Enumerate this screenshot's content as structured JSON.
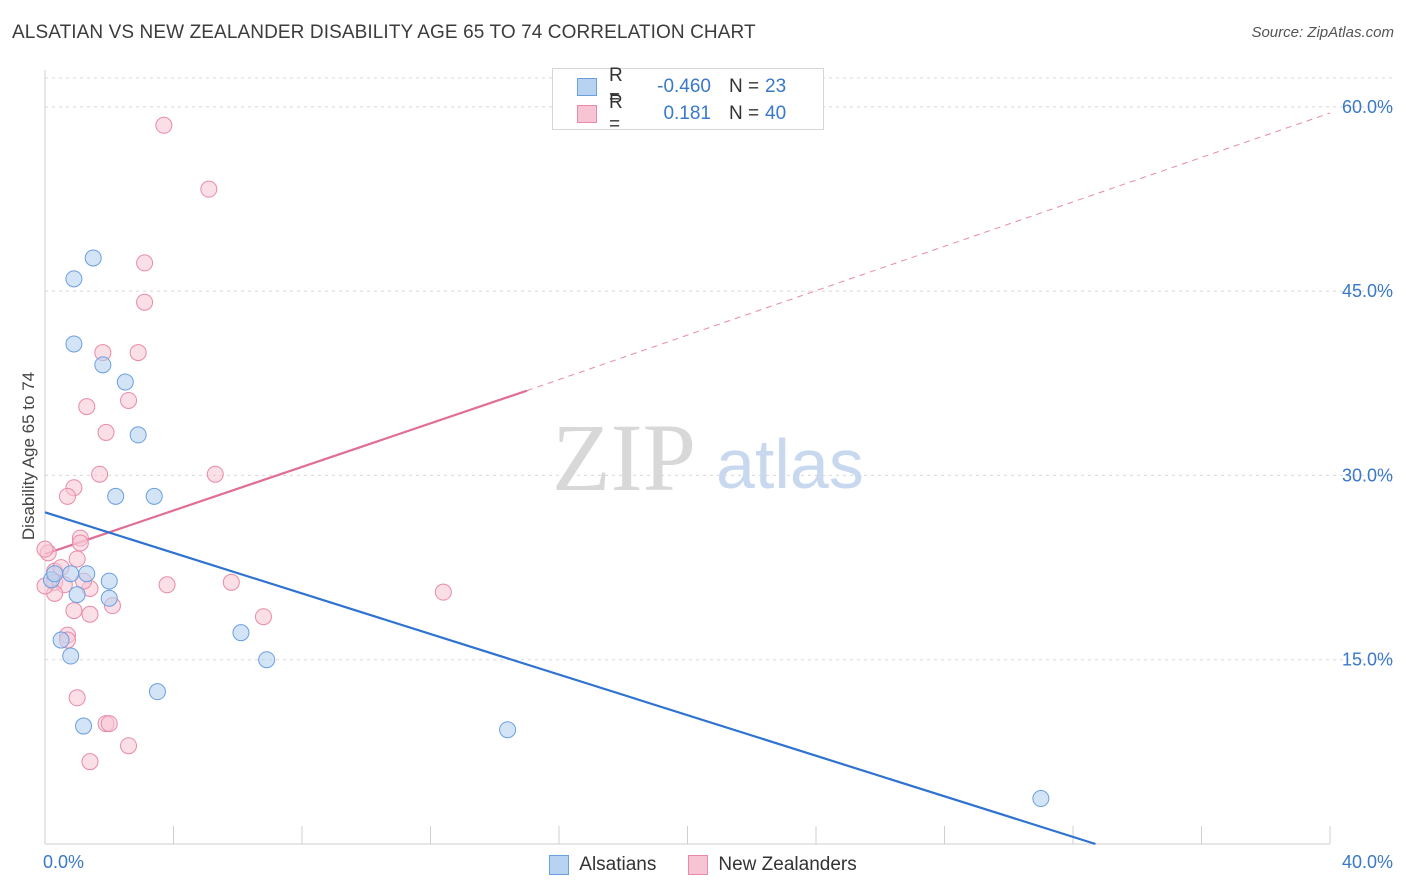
{
  "title": "ALSATIAN VS NEW ZEALANDER DISABILITY AGE 65 TO 74 CORRELATION CHART",
  "source": "Source: ZipAtlas.com",
  "watermark": {
    "zip": "ZIP",
    "atlas": "atlas"
  },
  "colors": {
    "blue_fill": "#b8d2f2",
    "blue_stroke": "#6a9fe0",
    "blue_line": "#2f73d0",
    "pink_fill": "#f7c4d3",
    "pink_stroke": "#e98aa8",
    "pink_line": "#e06e96",
    "grid": "#d8d8d8",
    "axis_label": "#3a78c9"
  },
  "legend": {
    "rows": [
      {
        "r_label": "R =",
        "r_value": "-0.460",
        "n_label": "N =",
        "n_value": "23"
      },
      {
        "r_label": "R =",
        "r_value": "0.181",
        "n_label": "N =",
        "n_value": "40"
      }
    ]
  },
  "bottom_legend": {
    "alsatians": "Alsatians",
    "new_zealanders": "New Zealanders"
  },
  "chart_data": {
    "type": "scatter",
    "title": "ALSATIAN VS NEW ZEALANDER DISABILITY AGE 65 TO 74 CORRELATION CHART",
    "xlabel": "",
    "ylabel": "Disability Age 65 to 74",
    "xlim": [
      0,
      40
    ],
    "ylim": [
      0,
      63
    ],
    "x_tick_labels": [
      "0.0%",
      "40.0%"
    ],
    "y_ticks": [
      15,
      30,
      45,
      60
    ],
    "y_tick_labels": [
      "15.0%",
      "30.0%",
      "45.0%",
      "60.0%"
    ],
    "legend_position": "top-center",
    "series": [
      {
        "name": "Alsatians",
        "color": "blue",
        "points": [
          [
            1.5,
            47.7
          ],
          [
            0.9,
            46.0
          ],
          [
            0.9,
            40.7
          ],
          [
            1.8,
            39.0
          ],
          [
            2.5,
            37.6
          ],
          [
            2.9,
            33.3
          ],
          [
            2.2,
            28.3
          ],
          [
            3.4,
            28.3
          ],
          [
            0.8,
            22.0
          ],
          [
            1.3,
            22.0
          ],
          [
            1.0,
            20.3
          ],
          [
            2.0,
            21.4
          ],
          [
            2.0,
            20.0
          ],
          [
            0.5,
            16.6
          ],
          [
            0.8,
            15.3
          ],
          [
            6.1,
            17.2
          ],
          [
            6.9,
            15.0
          ],
          [
            3.5,
            12.4
          ],
          [
            1.2,
            9.6
          ],
          [
            14.4,
            9.3
          ],
          [
            31.0,
            3.7
          ],
          [
            0.2,
            21.5
          ],
          [
            0.3,
            22.0
          ]
        ],
        "trend": {
          "x": [
            0,
            32.7
          ],
          "y": [
            27.0,
            0.0
          ]
        }
      },
      {
        "name": "New Zealanders",
        "color": "pink",
        "points": [
          [
            3.7,
            58.5
          ],
          [
            5.1,
            53.3
          ],
          [
            3.1,
            47.3
          ],
          [
            3.1,
            44.1
          ],
          [
            1.8,
            40.0
          ],
          [
            2.9,
            40.0
          ],
          [
            1.3,
            35.6
          ],
          [
            2.6,
            36.1
          ],
          [
            1.9,
            33.5
          ],
          [
            1.7,
            30.1
          ],
          [
            5.3,
            30.1
          ],
          [
            0.9,
            29.0
          ],
          [
            0.7,
            28.3
          ],
          [
            1.1,
            24.9
          ],
          [
            1.1,
            24.5
          ],
          [
            0.1,
            23.7
          ],
          [
            1.0,
            23.2
          ],
          [
            0.3,
            22.2
          ],
          [
            0.3,
            21.3
          ],
          [
            0.6,
            21.1
          ],
          [
            3.8,
            21.1
          ],
          [
            0.3,
            20.4
          ],
          [
            1.4,
            20.8
          ],
          [
            0.9,
            19.0
          ],
          [
            2.1,
            19.4
          ],
          [
            1.4,
            18.7
          ],
          [
            5.8,
            21.3
          ],
          [
            6.8,
            18.5
          ],
          [
            12.4,
            20.5
          ],
          [
            0.7,
            17.0
          ],
          [
            0.7,
            16.6
          ],
          [
            1.0,
            11.9
          ],
          [
            1.9,
            9.8
          ],
          [
            2.0,
            9.8
          ],
          [
            2.6,
            8.0
          ],
          [
            1.4,
            6.7
          ],
          [
            0.0,
            24.0
          ],
          [
            0.0,
            21.0
          ],
          [
            0.5,
            22.5
          ],
          [
            1.2,
            21.4
          ]
        ],
        "trend": {
          "x": [
            0,
            15.0
          ],
          "y": [
            23.6,
            36.9
          ]
        },
        "trend_extension": {
          "x": [
            15.0,
            40
          ],
          "y": [
            36.9,
            59.5
          ]
        }
      }
    ]
  }
}
